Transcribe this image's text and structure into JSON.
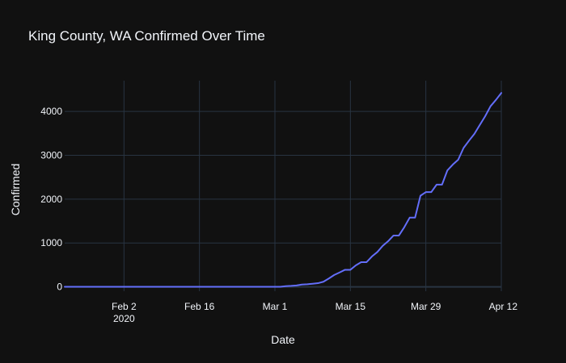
{
  "chart_data": {
    "type": "line",
    "title": "King County, WA Confirmed Over Time",
    "xlabel": "Date",
    "ylabel": "Confirmed",
    "xlim": [
      "2020-01-22",
      "2020-04-12"
    ],
    "ylim": [
      -100,
      4700
    ],
    "x_ticks": [
      {
        "date": "2020-02-02",
        "label": "Feb 2",
        "sublabel": "2020"
      },
      {
        "date": "2020-02-16",
        "label": "Feb 16",
        "sublabel": ""
      },
      {
        "date": "2020-03-01",
        "label": "Mar 1",
        "sublabel": ""
      },
      {
        "date": "2020-03-15",
        "label": "Mar 15",
        "sublabel": ""
      },
      {
        "date": "2020-03-29",
        "label": "Mar 29",
        "sublabel": ""
      },
      {
        "date": "2020-04-12",
        "label": "Apr 12",
        "sublabel": ""
      }
    ],
    "y_ticks": [
      0,
      1000,
      2000,
      3000,
      4000
    ],
    "grid": true,
    "line_color": "#636efa",
    "series": [
      {
        "name": "",
        "x": [
          "2020-01-22",
          "2020-02-02",
          "2020-02-16",
          "2020-03-01",
          "2020-03-02",
          "2020-03-03",
          "2020-03-04",
          "2020-03-05",
          "2020-03-06",
          "2020-03-07",
          "2020-03-08",
          "2020-03-09",
          "2020-03-10",
          "2020-03-11",
          "2020-03-12",
          "2020-03-13",
          "2020-03-14",
          "2020-03-15",
          "2020-03-16",
          "2020-03-17",
          "2020-03-18",
          "2020-03-19",
          "2020-03-20",
          "2020-03-21",
          "2020-03-22",
          "2020-03-23",
          "2020-03-24",
          "2020-03-25",
          "2020-03-26",
          "2020-03-27",
          "2020-03-28",
          "2020-03-29",
          "2020-03-30",
          "2020-03-31",
          "2020-04-01",
          "2020-04-02",
          "2020-04-03",
          "2020-04-04",
          "2020-04-05",
          "2020-04-06",
          "2020-04-07",
          "2020-04-08",
          "2020-04-09",
          "2020-04-10",
          "2020-04-11",
          "2020-04-12"
        ],
        "y": [
          1,
          1,
          1,
          1,
          1,
          14,
          21,
          31,
          51,
          58,
          71,
          83,
          116,
          190,
          270,
          328,
          388,
          388,
          488,
          562,
          562,
          693,
          793,
          934,
          1040,
          1170,
          1170,
          1359,
          1577,
          1577,
          2077,
          2159,
          2159,
          2330,
          2330,
          2656,
          2787,
          2898,
          3167,
          3331,
          3486,
          3688,
          3889,
          4117,
          4262,
          4420
        ]
      }
    ]
  }
}
